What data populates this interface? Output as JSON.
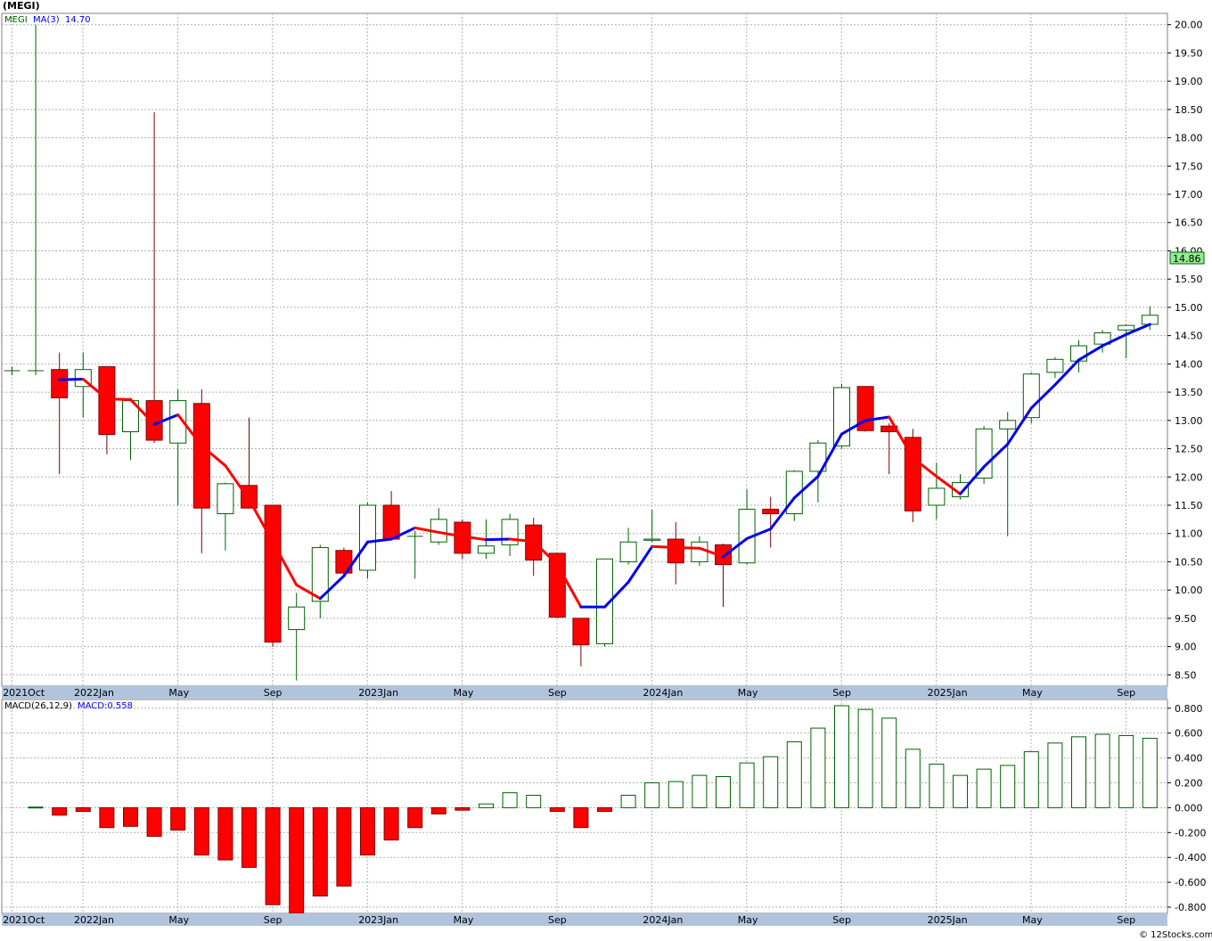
{
  "title": "(MEGI)",
  "ticker": "MEGI",
  "credit": "© 12Stocks.com",
  "colors": {
    "up_candle": "#006400",
    "down_candle": "#ff0000",
    "ma_rising": "#0000ee",
    "ma_falling": "#ff0000",
    "grid": "#b0b0b0",
    "axis_band": "#b0c4de",
    "price_tag": "#90ee90"
  },
  "legend": {
    "ticker_label": "MEGI",
    "ma_label": "MA(3)",
    "ma_value": "14.70",
    "macd_label": "MACD(26,12,9)",
    "macd_value_label": "MACD:0.558"
  },
  "last_price_tag": "14.86",
  "x_axis_labels": [
    "2021Oct",
    "2022Jan",
    "May",
    "Sep",
    "2023Jan",
    "May",
    "Sep",
    "2024Jan",
    "May",
    "Sep",
    "2025Jan",
    "May",
    "Sep"
  ],
  "chart_data": [
    {
      "type": "candlestick",
      "name": "price",
      "interval": "monthly",
      "ylim": [
        8.3,
        20.2
      ],
      "y_ticks": [
        "20.00",
        "19.50",
        "19.00",
        "18.50",
        "18.00",
        "17.50",
        "17.00",
        "16.50",
        "16.00",
        "15.50",
        "15.00",
        "14.50",
        "14.00",
        "13.50",
        "13.00",
        "12.50",
        "12.00",
        "11.50",
        "11.00",
        "10.50",
        "10.00",
        "9.50",
        "9.00",
        "8.50"
      ],
      "x": [
        "2021-10",
        "2021-11",
        "2021-12",
        "2022-01",
        "2022-02",
        "2022-03",
        "2022-04",
        "2022-05",
        "2022-06",
        "2022-07",
        "2022-08",
        "2022-09",
        "2022-10",
        "2022-11",
        "2022-12",
        "2023-01",
        "2023-02",
        "2023-03",
        "2023-04",
        "2023-05",
        "2023-06",
        "2023-07",
        "2023-08",
        "2023-09",
        "2023-10",
        "2023-11",
        "2023-12",
        "2024-01",
        "2024-02",
        "2024-03",
        "2024-04",
        "2024-05",
        "2024-06",
        "2024-07",
        "2024-08",
        "2024-09",
        "2024-10",
        "2024-11",
        "2024-12",
        "2025-01",
        "2025-02",
        "2025-03",
        "2025-04",
        "2025-05",
        "2025-06",
        "2025-07",
        "2025-08",
        "2025-09",
        "2025-10"
      ],
      "candles": [
        {
          "o": 13.88,
          "h": 13.95,
          "l": 13.8,
          "c": 13.88
        },
        {
          "o": 13.88,
          "h": 20.0,
          "l": 13.8,
          "c": 13.88
        },
        {
          "o": 13.9,
          "h": 14.2,
          "l": 12.05,
          "c": 13.4
        },
        {
          "o": 13.6,
          "h": 14.2,
          "l": 13.05,
          "c": 13.9
        },
        {
          "o": 13.95,
          "h": 13.95,
          "l": 12.4,
          "c": 12.75
        },
        {
          "o": 12.8,
          "h": 13.4,
          "l": 12.3,
          "c": 13.35
        },
        {
          "o": 13.35,
          "h": 18.45,
          "l": 12.6,
          "c": 12.65
        },
        {
          "o": 12.6,
          "h": 13.55,
          "l": 11.5,
          "c": 13.35
        },
        {
          "o": 13.3,
          "h": 13.55,
          "l": 10.65,
          "c": 11.45
        },
        {
          "o": 11.35,
          "h": 11.9,
          "l": 10.7,
          "c": 11.88
        },
        {
          "o": 11.85,
          "h": 13.05,
          "l": 11.45,
          "c": 11.45
        },
        {
          "o": 11.5,
          "h": 11.5,
          "l": 9.0,
          "c": 9.08
        },
        {
          "o": 9.3,
          "h": 9.95,
          "l": 8.4,
          "c": 9.7
        },
        {
          "o": 9.8,
          "h": 10.8,
          "l": 9.5,
          "c": 10.75
        },
        {
          "o": 10.7,
          "h": 10.75,
          "l": 10.25,
          "c": 10.3
        },
        {
          "o": 10.35,
          "h": 11.55,
          "l": 10.2,
          "c": 11.5
        },
        {
          "o": 11.5,
          "h": 11.75,
          "l": 10.9,
          "c": 10.9
        },
        {
          "o": 10.95,
          "h": 11.05,
          "l": 10.2,
          "c": 10.95
        },
        {
          "o": 10.85,
          "h": 11.45,
          "l": 10.8,
          "c": 11.25
        },
        {
          "o": 11.2,
          "h": 11.25,
          "l": 10.55,
          "c": 10.65
        },
        {
          "o": 10.65,
          "h": 11.25,
          "l": 10.55,
          "c": 10.78
        },
        {
          "o": 10.8,
          "h": 11.35,
          "l": 10.6,
          "c": 11.25
        },
        {
          "o": 11.15,
          "h": 11.28,
          "l": 10.25,
          "c": 10.53
        },
        {
          "o": 10.65,
          "h": 10.65,
          "l": 9.5,
          "c": 9.52
        },
        {
          "o": 9.5,
          "h": 9.5,
          "l": 8.65,
          "c": 9.03
        },
        {
          "o": 9.05,
          "h": 10.55,
          "l": 9.0,
          "c": 10.55
        },
        {
          "o": 10.5,
          "h": 11.1,
          "l": 10.45,
          "c": 10.85
        },
        {
          "o": 10.88,
          "h": 11.42,
          "l": 10.85,
          "c": 10.9
        },
        {
          "o": 10.9,
          "h": 11.2,
          "l": 10.1,
          "c": 10.48
        },
        {
          "o": 10.5,
          "h": 10.95,
          "l": 10.43,
          "c": 10.85
        },
        {
          "o": 10.8,
          "h": 10.82,
          "l": 9.7,
          "c": 10.45
        },
        {
          "o": 10.48,
          "h": 11.78,
          "l": 10.45,
          "c": 11.43
        },
        {
          "o": 11.43,
          "h": 11.65,
          "l": 10.75,
          "c": 11.35
        },
        {
          "o": 11.35,
          "h": 12.12,
          "l": 11.22,
          "c": 12.1
        },
        {
          "o": 12.1,
          "h": 12.65,
          "l": 11.55,
          "c": 12.6
        },
        {
          "o": 12.55,
          "h": 13.65,
          "l": 12.5,
          "c": 13.58
        },
        {
          "o": 13.6,
          "h": 13.6,
          "l": 12.8,
          "c": 12.82
        },
        {
          "o": 12.9,
          "h": 12.95,
          "l": 12.05,
          "c": 12.8
        },
        {
          "o": 12.7,
          "h": 12.85,
          "l": 11.2,
          "c": 11.4
        },
        {
          "o": 11.5,
          "h": 12.25,
          "l": 11.25,
          "c": 11.8
        },
        {
          "o": 11.65,
          "h": 12.05,
          "l": 11.6,
          "c": 11.9
        },
        {
          "o": 11.98,
          "h": 12.9,
          "l": 11.88,
          "c": 12.85
        },
        {
          "o": 12.85,
          "h": 13.15,
          "l": 10.95,
          "c": 13.0
        },
        {
          "o": 13.05,
          "h": 13.85,
          "l": 12.95,
          "c": 13.82
        },
        {
          "o": 13.85,
          "h": 14.12,
          "l": 13.75,
          "c": 14.08
        },
        {
          "o": 14.05,
          "h": 14.42,
          "l": 13.85,
          "c": 14.32
        },
        {
          "o": 14.35,
          "h": 14.6,
          "l": 14.2,
          "c": 14.55
        },
        {
          "o": 14.6,
          "h": 14.7,
          "l": 14.1,
          "c": 14.68
        },
        {
          "o": 14.7,
          "h": 15.02,
          "l": 14.6,
          "c": 14.86
        }
      ],
      "ma3": [
        null,
        null,
        13.72,
        13.73,
        13.38,
        13.37,
        12.93,
        13.1,
        12.55,
        12.2,
        11.6,
        10.85,
        10.09,
        9.85,
        10.25,
        10.85,
        10.9,
        11.1,
        11.02,
        10.95,
        10.89,
        10.9,
        10.86,
        10.45,
        9.7,
        9.7,
        10.14,
        10.77,
        10.75,
        10.74,
        10.59,
        10.91,
        11.08,
        11.63,
        12.01,
        12.76,
        13.0,
        13.06,
        12.34,
        12.01,
        11.7,
        12.18,
        12.58,
        13.22,
        13.63,
        14.07,
        14.32,
        14.52,
        14.7
      ]
    },
    {
      "type": "bar",
      "name": "MACD(26,12,9)",
      "ylim": [
        -0.85,
        0.87
      ],
      "y_ticks": [
        "0.800",
        "0.600",
        "0.400",
        "0.200",
        "0.000",
        "-0.200",
        "-0.400",
        "-0.600",
        "-0.800"
      ],
      "values": [
        null,
        0.005,
        -0.06,
        -0.03,
        -0.16,
        -0.15,
        -0.23,
        -0.18,
        -0.38,
        -0.42,
        -0.48,
        -0.78,
        -0.85,
        -0.71,
        -0.63,
        -0.38,
        -0.26,
        -0.16,
        -0.05,
        -0.02,
        0.03,
        0.12,
        0.1,
        -0.03,
        -0.16,
        -0.03,
        0.1,
        0.2,
        0.21,
        0.26,
        0.25,
        0.36,
        0.41,
        0.53,
        0.64,
        0.82,
        0.79,
        0.72,
        0.47,
        0.35,
        0.26,
        0.31,
        0.34,
        0.45,
        0.52,
        0.57,
        0.59,
        0.58,
        0.558
      ]
    }
  ]
}
